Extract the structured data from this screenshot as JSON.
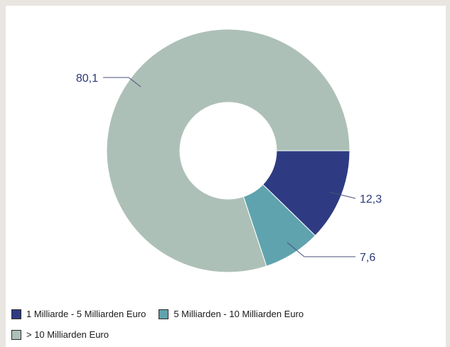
{
  "chart_data": {
    "type": "pie",
    "donut": true,
    "categories": [
      "1 Milliarde - 5 Milliarden Euro",
      "5 Milliarden - 10 Milliarden Euro",
      "> 10 Milliarden Euro"
    ],
    "values": [
      12.3,
      7.6,
      80.1
    ],
    "value_labels": [
      "12,3",
      "7,6",
      "80,1"
    ],
    "colors": [
      "#2e3b82",
      "#5fa3ae",
      "#adc0b7"
    ],
    "start": "3 o'clock",
    "direction": "clockwise",
    "legend": "bottom-left"
  }
}
